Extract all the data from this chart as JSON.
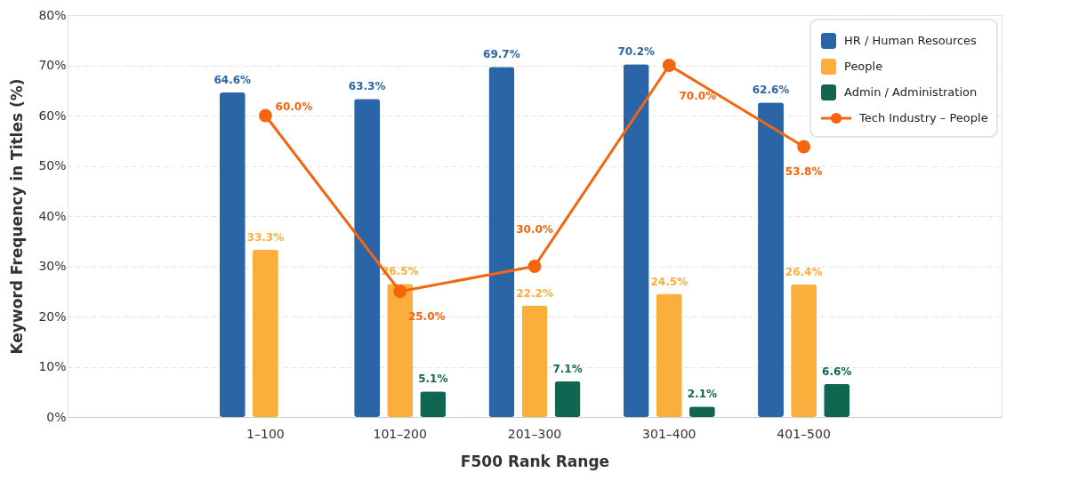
{
  "chart_data": {
    "type": "bar",
    "xlabel": "F500 Rank Range",
    "ylabel": "Keyword Frequency in Titles (%)",
    "categories": [
      "1–100",
      "101–200",
      "201–300",
      "301–400",
      "401–500"
    ],
    "series": [
      {
        "name": "HR / Human Resources",
        "type": "bar",
        "color": "#2a65a8",
        "values": [
          64.6,
          63.3,
          69.7,
          70.2,
          62.6
        ],
        "value_labels": [
          "64.6%",
          "63.3%",
          "69.7%",
          "70.2%",
          "62.6%"
        ]
      },
      {
        "name": "People",
        "type": "bar",
        "color": "#fbae3c",
        "values": [
          33.3,
          26.5,
          22.2,
          24.5,
          26.4
        ],
        "value_labels": [
          "33.3%",
          "26.5%",
          "22.2%",
          "24.5%",
          "26.4%"
        ]
      },
      {
        "name": "Admin / Administration",
        "type": "bar",
        "color": "#106650",
        "values": [
          0,
          5.1,
          7.1,
          2.1,
          6.6
        ],
        "value_labels": [
          null,
          "5.1%",
          "7.1%",
          "2.1%",
          "6.6%"
        ]
      },
      {
        "name": "Tech Industry – People",
        "type": "line",
        "color": "#f5650f",
        "values": [
          60.0,
          25.0,
          30.0,
          70.0,
          53.8
        ],
        "value_labels": [
          "60.0%",
          "25.0%",
          "30.0%",
          "70.0%",
          "53.8%"
        ]
      }
    ],
    "ylim": [
      0,
      80
    ],
    "yticks": [
      {
        "value": 0,
        "label": "0%"
      },
      {
        "value": 10,
        "label": "10%"
      },
      {
        "value": 20,
        "label": "20%"
      },
      {
        "value": 30,
        "label": "30%"
      },
      {
        "value": 40,
        "label": "40%"
      },
      {
        "value": 50,
        "label": "50%"
      },
      {
        "value": 60,
        "label": "60%"
      },
      {
        "value": 70,
        "label": "70%"
      },
      {
        "value": 80,
        "label": "80%"
      }
    ],
    "grid": "y",
    "legend": "top right",
    "marker": "circle",
    "line_style": "solid"
  }
}
